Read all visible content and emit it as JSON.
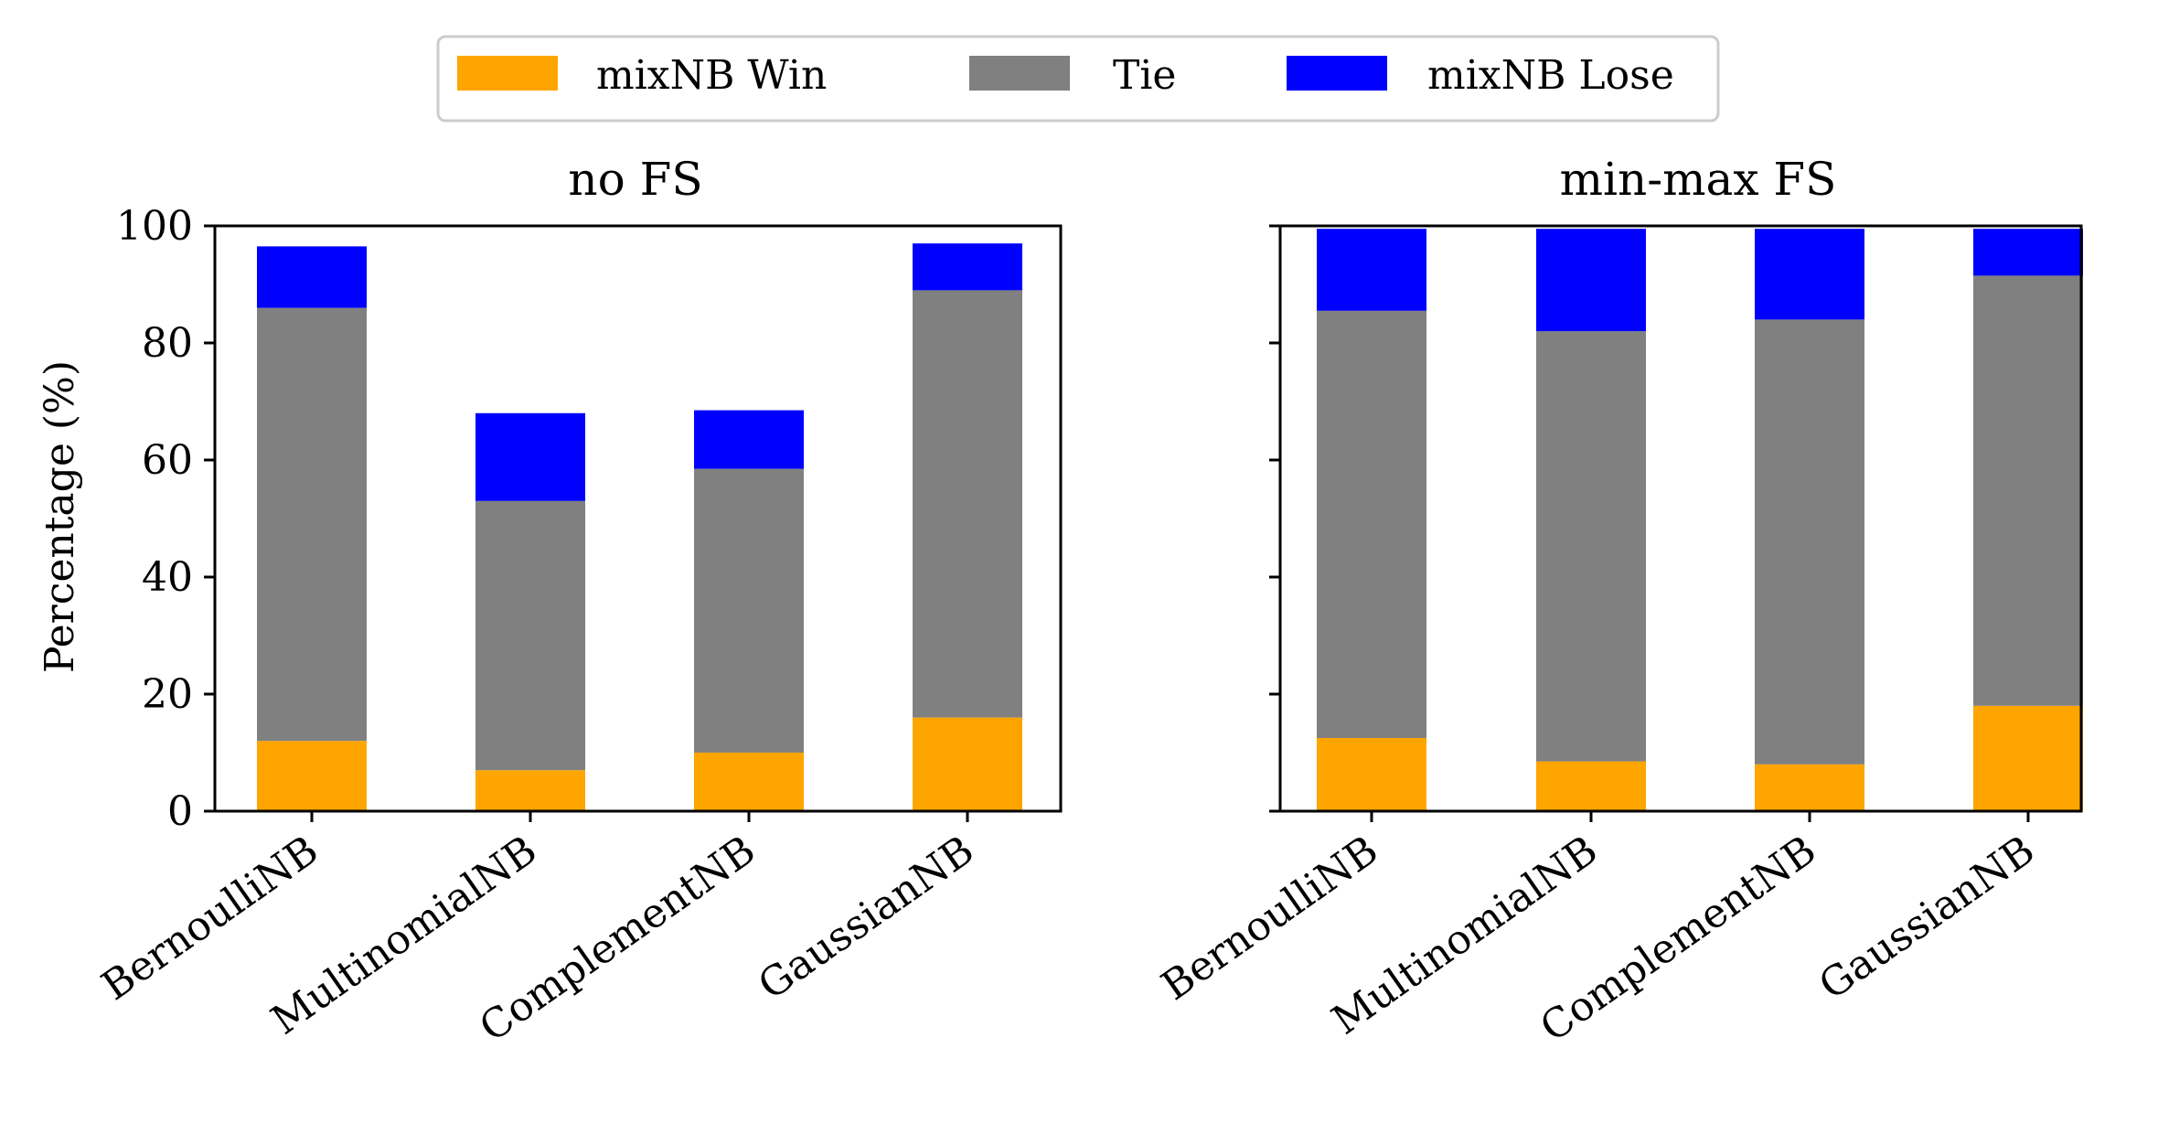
{
  "legend": {
    "entries": [
      {
        "label": "mixNB Win",
        "color": "#FFA500"
      },
      {
        "label": "Tie",
        "color": "#808080"
      },
      {
        "label": "mixNB Lose",
        "color": "#0000FF"
      }
    ]
  },
  "ylabel": "Percentage (%)",
  "chart_data": [
    {
      "type": "bar",
      "stacked": true,
      "title": "no FS",
      "xlabel": "",
      "ylabel": "Percentage (%)",
      "ylim": [
        0,
        100
      ],
      "yticks": [
        "0",
        "20",
        "40",
        "60",
        "80",
        "100"
      ],
      "categories": [
        "BernoulliNB",
        "MultinomialNB",
        "ComplementNB",
        "GaussianNB"
      ],
      "series": [
        {
          "name": "mixNB Win",
          "color": "#FFA500",
          "values": [
            12,
            7,
            10,
            16
          ]
        },
        {
          "name": "Tie",
          "color": "#808080",
          "values": [
            74,
            46,
            48.5,
            73
          ]
        },
        {
          "name": "mixNB Lose",
          "color": "#0000FF",
          "values": [
            10.5,
            15,
            10,
            8
          ]
        }
      ]
    },
    {
      "type": "bar",
      "stacked": true,
      "title": "min-max FS",
      "xlabel": "",
      "ylabel": "",
      "ylim": [
        0,
        100
      ],
      "yticks": [],
      "categories": [
        "BernoulliNB",
        "MultinomialNB",
        "ComplementNB",
        "GaussianNB"
      ],
      "series": [
        {
          "name": "mixNB Win",
          "color": "#FFA500",
          "values": [
            12.5,
            8.5,
            8,
            18
          ]
        },
        {
          "name": "Tie",
          "color": "#808080",
          "values": [
            73,
            73.5,
            76,
            73.5
          ]
        },
        {
          "name": "mixNB Lose",
          "color": "#0000FF",
          "values": [
            14,
            17.5,
            15.5,
            8
          ]
        }
      ]
    }
  ]
}
